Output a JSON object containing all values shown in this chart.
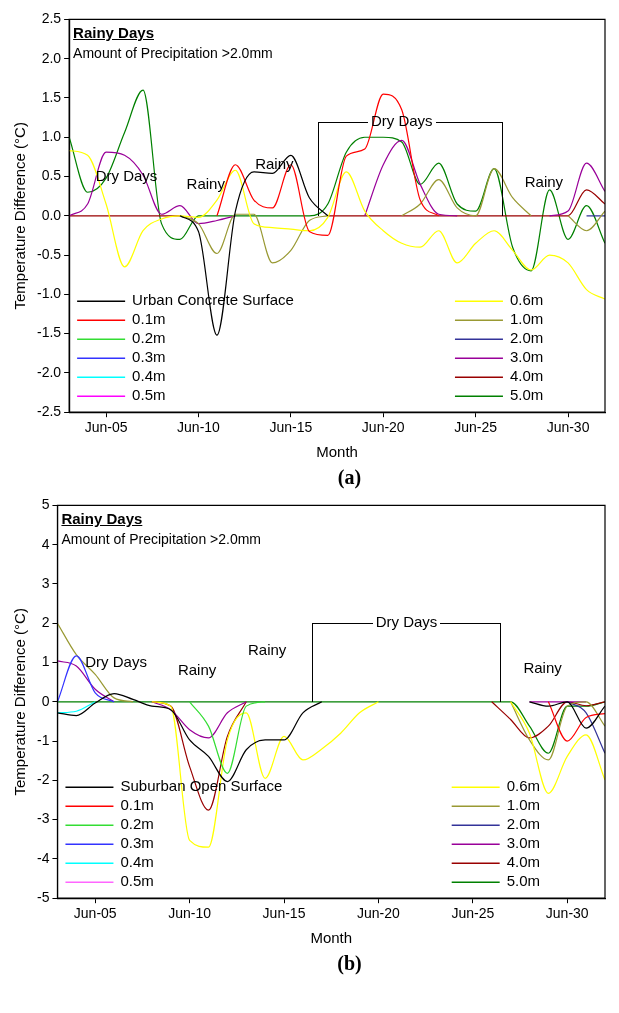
{
  "chart_data": [
    {
      "type": "line",
      "title": "Rainy Days",
      "subtitle": "Amount of Precipitation >2.0mm",
      "xlabel": "Month",
      "ylabel": "Temperature Difference (°C)",
      "marker": "none",
      "legend": "bottom",
      "grid": false,
      "x": [
        "--06-03",
        "--06-04",
        "--06-05",
        "--06-06",
        "--06-07",
        "--06-08",
        "--06-09",
        "--06-10",
        "--06-11",
        "--06-12",
        "--06-13",
        "--06-14",
        "--06-15",
        "--06-16",
        "--06-17",
        "--06-18",
        "--06-19",
        "--06-20",
        "--06-21",
        "--06-22",
        "--06-23",
        "--06-24",
        "--06-25",
        "--06-26",
        "--06-27",
        "--06-28",
        "--06-29",
        "--06-30",
        "--07-01",
        "--07-02"
      ],
      "xlim": [
        "--06-03",
        "--07-02"
      ],
      "xticks": [
        {
          "value": "--06-05",
          "label": "Jun-05"
        },
        {
          "value": "--06-10",
          "label": "Jun-10"
        },
        {
          "value": "--06-15",
          "label": "Jun-15"
        },
        {
          "value": "--06-20",
          "label": "Jun-20"
        },
        {
          "value": "--06-25",
          "label": "Jun-25"
        },
        {
          "value": "--06-30",
          "label": "Jun-30"
        }
      ],
      "ylim": [
        -2.5,
        2.5
      ],
      "yticks": [
        {
          "value": -2.5,
          "label": "-2.5"
        },
        {
          "value": -2,
          "label": "-2.0"
        },
        {
          "value": -1.5,
          "label": "-1.5"
        },
        {
          "value": -1,
          "label": "-1.0"
        },
        {
          "value": -0.5,
          "label": "-0.5"
        },
        {
          "value": 0,
          "label": "0.0"
        },
        {
          "value": 0.5,
          "label": "0.5"
        },
        {
          "value": 1,
          "label": "1.0"
        },
        {
          "value": 1.5,
          "label": "1.5"
        },
        {
          "value": 2,
          "label": "2.0"
        },
        {
          "value": 2.5,
          "label": "2.5"
        }
      ],
      "series": [
        {
          "name": "Urban Concrete Surface",
          "color": "#000000",
          "values": [
            null,
            null,
            null,
            null,
            null,
            null,
            0,
            -0.2,
            -1.52,
            0.06,
            0.56,
            0.54,
            0.77,
            0.23,
            0,
            null,
            null,
            null,
            null,
            null,
            null,
            null,
            null,
            null,
            null,
            null,
            null,
            null,
            null,
            null
          ]
        },
        {
          "name": "0.1m",
          "color": "#ff0000",
          "values": [
            null,
            null,
            null,
            null,
            null,
            null,
            null,
            null,
            0,
            0.65,
            0.2,
            0.1,
            0.65,
            -0.2,
            -0.25,
            0.76,
            0.85,
            1.55,
            1.35,
            0.2,
            0,
            null,
            null,
            null,
            null,
            null,
            null,
            null,
            null,
            null
          ]
        },
        {
          "name": "0.2m",
          "color": "#33dd33",
          "values": [
            null,
            null,
            null,
            null,
            null,
            null,
            null,
            null,
            null,
            null,
            null,
            null,
            null,
            null,
            null,
            null,
            null,
            null,
            null,
            null,
            null,
            null,
            null,
            null,
            null,
            null,
            null,
            null,
            null,
            null
          ]
        },
        {
          "name": "0.3m",
          "color": "#3333ff",
          "values": [
            null,
            null,
            null,
            null,
            null,
            null,
            null,
            null,
            null,
            null,
            null,
            null,
            null,
            null,
            null,
            null,
            null,
            null,
            null,
            null,
            null,
            null,
            null,
            null,
            null,
            null,
            null,
            null,
            null,
            null
          ]
        },
        {
          "name": "0.4m",
          "color": "#00ffff",
          "values": [
            null,
            null,
            null,
            null,
            null,
            null,
            null,
            null,
            null,
            null,
            null,
            null,
            null,
            null,
            null,
            null,
            null,
            null,
            null,
            null,
            null,
            null,
            null,
            null,
            null,
            null,
            null,
            null,
            null,
            null
          ]
        },
        {
          "name": "0.5m",
          "color": "#ff00ff",
          "values": [
            null,
            null,
            null,
            null,
            null,
            null,
            null,
            null,
            null,
            null,
            null,
            null,
            null,
            null,
            null,
            null,
            null,
            null,
            null,
            null,
            null,
            null,
            null,
            null,
            null,
            null,
            null,
            null,
            null,
            null
          ]
        },
        {
          "name": "0.6m",
          "color": "#ffff00",
          "values": [
            0.83,
            0.77,
            0.15,
            -0.65,
            -0.19,
            -0.04,
            0,
            -0.02,
            0.2,
            0.58,
            -0.1,
            -0.15,
            -0.17,
            -0.19,
            -0.02,
            0.56,
            0.06,
            -0.19,
            -0.35,
            -0.4,
            -0.19,
            -0.6,
            -0.35,
            -0.19,
            -0.44,
            -0.69,
            -0.5,
            -0.6,
            -0.94,
            -1.06
          ]
        },
        {
          "name": "1.0m",
          "color": "#999933",
          "values": [
            null,
            null,
            null,
            null,
            null,
            null,
            0,
            -0.1,
            -0.48,
            0.02,
            0.02,
            -0.6,
            -0.44,
            -0.06,
            0,
            null,
            null,
            null,
            0,
            0.15,
            0.46,
            0.1,
            0,
            0.6,
            0.23,
            0,
            null,
            0,
            -0.19,
            0.06
          ]
        },
        {
          "name": "2.0m",
          "color": "#333399",
          "values": [
            null,
            null,
            null,
            null,
            null,
            null,
            null,
            null,
            null,
            null,
            null,
            null,
            null,
            null,
            null,
            null,
            null,
            null,
            null,
            null,
            null,
            null,
            null,
            null,
            null,
            null,
            null,
            null,
            0,
            0
          ]
        },
        {
          "name": "3.0m",
          "color": "#990099",
          "values": [
            0,
            0.15,
            0.81,
            0.77,
            0.52,
            0.02,
            0.13,
            -0.1,
            -0.06,
            0,
            null,
            null,
            null,
            null,
            null,
            null,
            0,
            0.65,
            0.96,
            0.4,
            0.02,
            0,
            null,
            null,
            null,
            null,
            0,
            0.06,
            0.67,
            0.31
          ]
        },
        {
          "name": "4.0m",
          "color": "#990000",
          "values": [
            0,
            0,
            0,
            0,
            0,
            0,
            0,
            null,
            null,
            null,
            null,
            null,
            null,
            null,
            0,
            0,
            0,
            0,
            0,
            0,
            0,
            0,
            0,
            0,
            0,
            0,
            0,
            0,
            0.33,
            0.15
          ]
        },
        {
          "name": "5.0m",
          "color": "#008000",
          "values": [
            1.0,
            0.3,
            0.48,
            1.06,
            1.6,
            -0.1,
            -0.3,
            0,
            0,
            0,
            0,
            0,
            0,
            0,
            0.15,
            0.81,
            1.0,
            1.0,
            0.94,
            0.4,
            0.67,
            0.15,
            0.06,
            0.6,
            -0.4,
            -0.7,
            0.33,
            -0.3,
            0.13,
            -0.35
          ]
        }
      ],
      "annotations": [
        "Dry Days",
        "Rainy",
        "Rainy",
        {
          "text": "Dry Days",
          "x": "--06-21",
          "y": 1.2
        },
        "Rainy",
        "(a)"
      ]
    },
    {
      "type": "line",
      "title": "Rainy Days",
      "subtitle": "Amount of Precipitation >2.0mm",
      "xlabel": "Month",
      "ylabel": "Temperature Difference (°C)",
      "marker": "none",
      "legend": "bottom",
      "grid": false,
      "x": [
        "--06-03",
        "--06-04",
        "--06-05",
        "--06-06",
        "--06-07",
        "--06-08",
        "--06-09",
        "--06-10",
        "--06-11",
        "--06-12",
        "--06-13",
        "--06-14",
        "--06-15",
        "--06-16",
        "--06-17",
        "--06-18",
        "--06-19",
        "--06-20",
        "--06-21",
        "--06-22",
        "--06-23",
        "--06-24",
        "--06-25",
        "--06-26",
        "--06-27",
        "--06-28",
        "--06-29",
        "--06-30",
        "--07-01",
        "--07-02"
      ],
      "xlim": [
        "--06-03",
        "--07-02"
      ],
      "xticks": [
        {
          "value": "--06-05",
          "label": "Jun-05"
        },
        {
          "value": "--06-10",
          "label": "Jun-10"
        },
        {
          "value": "--06-15",
          "label": "Jun-15"
        },
        {
          "value": "--06-20",
          "label": "Jun-20"
        },
        {
          "value": "--06-25",
          "label": "Jun-25"
        },
        {
          "value": "--06-30",
          "label": "Jun-30"
        }
      ],
      "ylim": [
        -5,
        5
      ],
      "yticks": [
        -5,
        -4,
        -3,
        -2,
        -1,
        0,
        1,
        2,
        3,
        4,
        5
      ],
      "series": [
        {
          "name": "Suburban Open Surface",
          "color": "#000000",
          "values": [
            -0.28,
            -0.35,
            -0.03,
            0.21,
            0.06,
            -0.11,
            -0.2,
            -0.97,
            -1.39,
            -2.03,
            -1.22,
            -0.97,
            -0.97,
            -0.28,
            0,
            null,
            null,
            null,
            null,
            null,
            null,
            null,
            null,
            null,
            null,
            0,
            -0.11,
            0,
            -0.67,
            -0.11
          ]
        },
        {
          "name": "0.1m",
          "color": "#ff0000",
          "values": [
            null,
            null,
            null,
            null,
            null,
            null,
            null,
            null,
            null,
            null,
            null,
            null,
            null,
            null,
            null,
            null,
            null,
            null,
            null,
            null,
            null,
            null,
            null,
            null,
            null,
            null,
            0,
            -1.0,
            -0.4,
            -0.3
          ]
        },
        {
          "name": "0.2m",
          "color": "#33dd33",
          "values": [
            null,
            null,
            null,
            null,
            null,
            null,
            null,
            0,
            -0.62,
            -1.82,
            -0.11,
            0,
            null,
            null,
            null,
            null,
            null,
            null,
            null,
            null,
            null,
            null,
            null,
            null,
            null,
            null,
            null,
            null,
            null,
            null
          ]
        },
        {
          "name": "0.3m",
          "color": "#3333ff",
          "values": [
            0,
            1.17,
            0.23,
            0,
            null,
            null,
            null,
            null,
            null,
            null,
            null,
            null,
            null,
            null,
            null,
            null,
            null,
            null,
            null,
            null,
            null,
            null,
            null,
            null,
            null,
            null,
            null,
            null,
            null,
            null
          ]
        },
        {
          "name": "0.4m",
          "color": "#00ffff",
          "values": [
            -0.28,
            -0.24,
            0,
            null,
            null,
            null,
            null,
            null,
            null,
            null,
            null,
            null,
            null,
            null,
            null,
            null,
            null,
            null,
            null,
            null,
            null,
            null,
            null,
            null,
            null,
            null,
            null,
            null,
            null,
            null
          ]
        },
        {
          "name": "0.5m",
          "color": "#ff66ff",
          "values": [
            null,
            null,
            null,
            null,
            null,
            null,
            null,
            null,
            null,
            null,
            null,
            null,
            null,
            null,
            null,
            null,
            null,
            null,
            null,
            null,
            null,
            null,
            null,
            null,
            null,
            null,
            null,
            null,
            null,
            null
          ]
        },
        {
          "name": "0.6m",
          "color": "#ffff00",
          "values": [
            null,
            null,
            null,
            null,
            null,
            0,
            -0.11,
            -3.53,
            -3.7,
            -0.97,
            -0.28,
            -1.95,
            -0.88,
            -1.48,
            -1.2,
            -0.8,
            -0.28,
            0,
            null,
            null,
            null,
            null,
            null,
            null,
            0,
            -0.8,
            -2.33,
            -1.39,
            -0.84,
            -1.99
          ]
        },
        {
          "name": "1.0m",
          "color": "#999933",
          "values": [
            2.0,
            1.2,
            0.7,
            0.1,
            0,
            null,
            null,
            null,
            null,
            null,
            null,
            null,
            null,
            null,
            null,
            null,
            null,
            null,
            null,
            null,
            null,
            null,
            null,
            null,
            0,
            -0.97,
            -1.48,
            -0.11,
            0,
            -0.62
          ]
        },
        {
          "name": "2.0m",
          "color": "#333399",
          "values": [
            null,
            null,
            null,
            null,
            null,
            null,
            null,
            null,
            null,
            null,
            null,
            null,
            null,
            null,
            null,
            null,
            null,
            null,
            null,
            null,
            null,
            null,
            null,
            null,
            null,
            null,
            null,
            0,
            -0.28,
            -1.31
          ]
        },
        {
          "name": "3.0m",
          "color": "#990099",
          "values": [
            1.04,
            0.91,
            0.32,
            0,
            null,
            0,
            -0.2,
            -0.71,
            -0.92,
            -0.28,
            0,
            null,
            null,
            null,
            null,
            null,
            null,
            null,
            null,
            null,
            null,
            null,
            null,
            null,
            null,
            0,
            0,
            0,
            0,
            null
          ]
        },
        {
          "name": "4.0m",
          "color": "#990000",
          "values": [
            null,
            null,
            null,
            null,
            null,
            0,
            -0.11,
            -1.65,
            -2.76,
            -0.88,
            0,
            null,
            null,
            null,
            null,
            null,
            null,
            null,
            null,
            null,
            null,
            null,
            null,
            0,
            -0.45,
            -0.92,
            -0.62,
            0,
            -0.1,
            0
          ]
        },
        {
          "name": "5.0m",
          "color": "#008000",
          "values": [
            0,
            0,
            0,
            0,
            0,
            0,
            0,
            0,
            0,
            0,
            0,
            0,
            0,
            0,
            0,
            0,
            0,
            0,
            0,
            0,
            0,
            0,
            0,
            0,
            0,
            -0.62,
            -1.31,
            -0.11,
            -0.11,
            0
          ]
        }
      ],
      "annotations": [
        "Dry Days",
        "Rainy",
        "Rainy",
        "Dry Days",
        "Rainy",
        "(b)"
      ]
    }
  ]
}
